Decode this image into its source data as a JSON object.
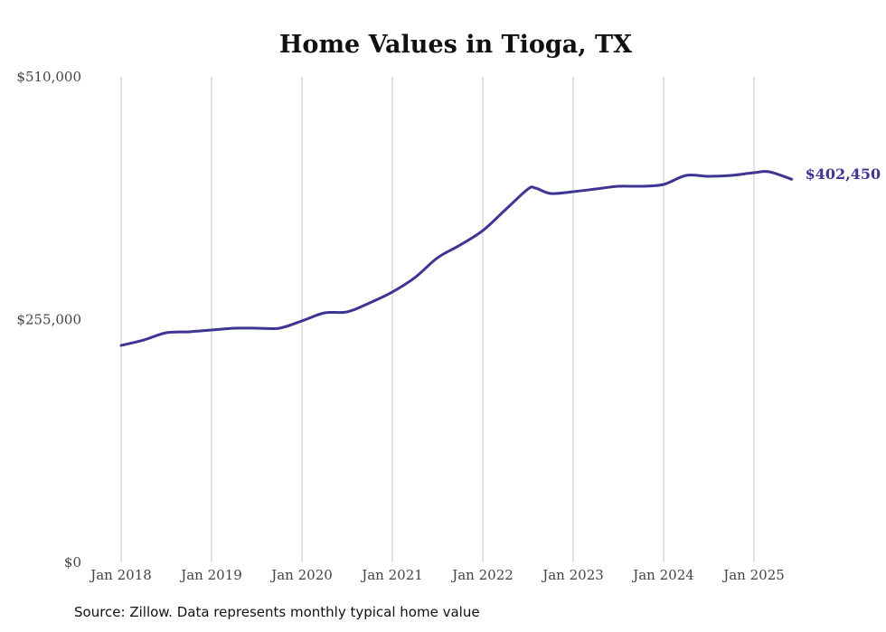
{
  "chart_data": {
    "type": "line",
    "title": "Home Values in Tioga, TX",
    "xlabel": "",
    "ylabel": "",
    "ylim": [
      0,
      510000
    ],
    "y_ticks": [
      {
        "value": 0,
        "label": "$0"
      },
      {
        "value": 255000,
        "label": "$255,000"
      },
      {
        "value": 510000,
        "label": "$510,000"
      }
    ],
    "x_ticks": [
      "Jan 2018",
      "Jan 2019",
      "Jan 2020",
      "Jan 2021",
      "Jan 2022",
      "Jan 2023",
      "Jan 2024",
      "Jan 2025"
    ],
    "grid": "vertical",
    "line_color": "#3d3494",
    "series": [
      {
        "name": "Typical home value",
        "months_since_jan_2018": [
          0,
          3,
          6,
          9,
          12,
          15,
          18,
          21,
          24,
          27,
          30,
          33,
          36,
          39,
          42,
          45,
          48,
          51,
          54,
          55,
          57,
          60,
          63,
          66,
          69,
          72,
          75,
          78,
          81,
          84,
          86,
          89
        ],
        "values": [
          227900,
          233600,
          241200,
          242200,
          244100,
          246000,
          246000,
          246000,
          253600,
          262100,
          263100,
          272600,
          284000,
          299200,
          320000,
          333400,
          348500,
          370400,
          392200,
          393200,
          387500,
          389400,
          392200,
          395100,
          395100,
          397000,
          406500,
          405500,
          406500,
          409300,
          410300,
          402450
        ]
      }
    ],
    "end_label": "$402,450",
    "source": "Source: Zillow. Data represents monthly typical home value"
  }
}
